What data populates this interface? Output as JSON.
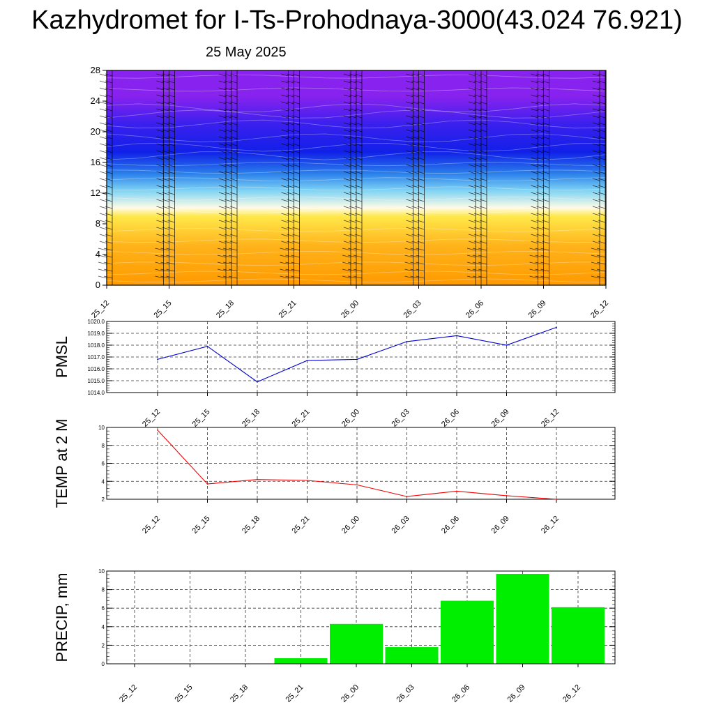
{
  "header": {
    "title": "Kazhydromet for I-Ts-Prohodnaya-3000(43.024 76.921)",
    "subtitle": "25 May 2025"
  },
  "chart_data": [
    {
      "type": "heatmap",
      "name": "vertical-profile",
      "y_ticks": [
        "0",
        "4",
        "8",
        "12",
        "16",
        "20",
        "24",
        "28"
      ],
      "ylim": [
        0,
        28
      ],
      "x_ticks": [
        "25_12",
        "25_15",
        "25_18",
        "25_21",
        "26_00",
        "26_03",
        "26_06",
        "26_09",
        "26_12"
      ],
      "colors": {
        "low": "#ff9a00",
        "mid": "#ffe84a",
        "transition": "#fffbe6",
        "cool": "#7fd4f5",
        "blue": "#1020e8",
        "high": "#8822ee"
      },
      "wind_barbs": true
    },
    {
      "type": "line",
      "ylabel": "PMSL",
      "categories": [
        "25_12",
        "25_15",
        "25_18",
        "25_21",
        "26_00",
        "26_03",
        "26_06",
        "26_09",
        "26_12"
      ],
      "values": [
        1016.8,
        1017.9,
        1014.9,
        1016.7,
        1016.8,
        1018.3,
        1018.8,
        1018.0,
        1019.5
      ],
      "ylim": [
        1014.0,
        1020.0
      ],
      "y_ticks": [
        "1014.0",
        "1015.0",
        "1016.0",
        "1017.0",
        "1018.0",
        "1019.0",
        "1020.0"
      ],
      "color": "#0000cc",
      "grid": true
    },
    {
      "type": "line",
      "ylabel": "TEMP at 2 M",
      "categories": [
        "25_12",
        "25_15",
        "25_18",
        "25_21",
        "26_00",
        "26_03",
        "26_06",
        "26_09",
        "26_12"
      ],
      "values": [
        9.7,
        3.7,
        4.2,
        4.1,
        3.6,
        2.3,
        2.9,
        2.4,
        2.0
      ],
      "ylim": [
        2,
        10
      ],
      "y_ticks": [
        "2",
        "4",
        "6",
        "8",
        "10"
      ],
      "color": "#ee0000",
      "grid": true
    },
    {
      "type": "bar",
      "ylabel": "PRECIP, mm",
      "categories": [
        "25_12",
        "25_15",
        "25_18",
        "25_21",
        "26_00",
        "26_03",
        "26_06",
        "26_09",
        "26_12"
      ],
      "values": [
        0,
        0,
        0,
        0.6,
        4.3,
        1.8,
        6.8,
        9.7,
        6.1
      ],
      "ylim": [
        0,
        10
      ],
      "y_ticks": [
        "0",
        "2",
        "4",
        "6",
        "8",
        "10"
      ],
      "color": "#00ee00",
      "grid": true
    }
  ]
}
